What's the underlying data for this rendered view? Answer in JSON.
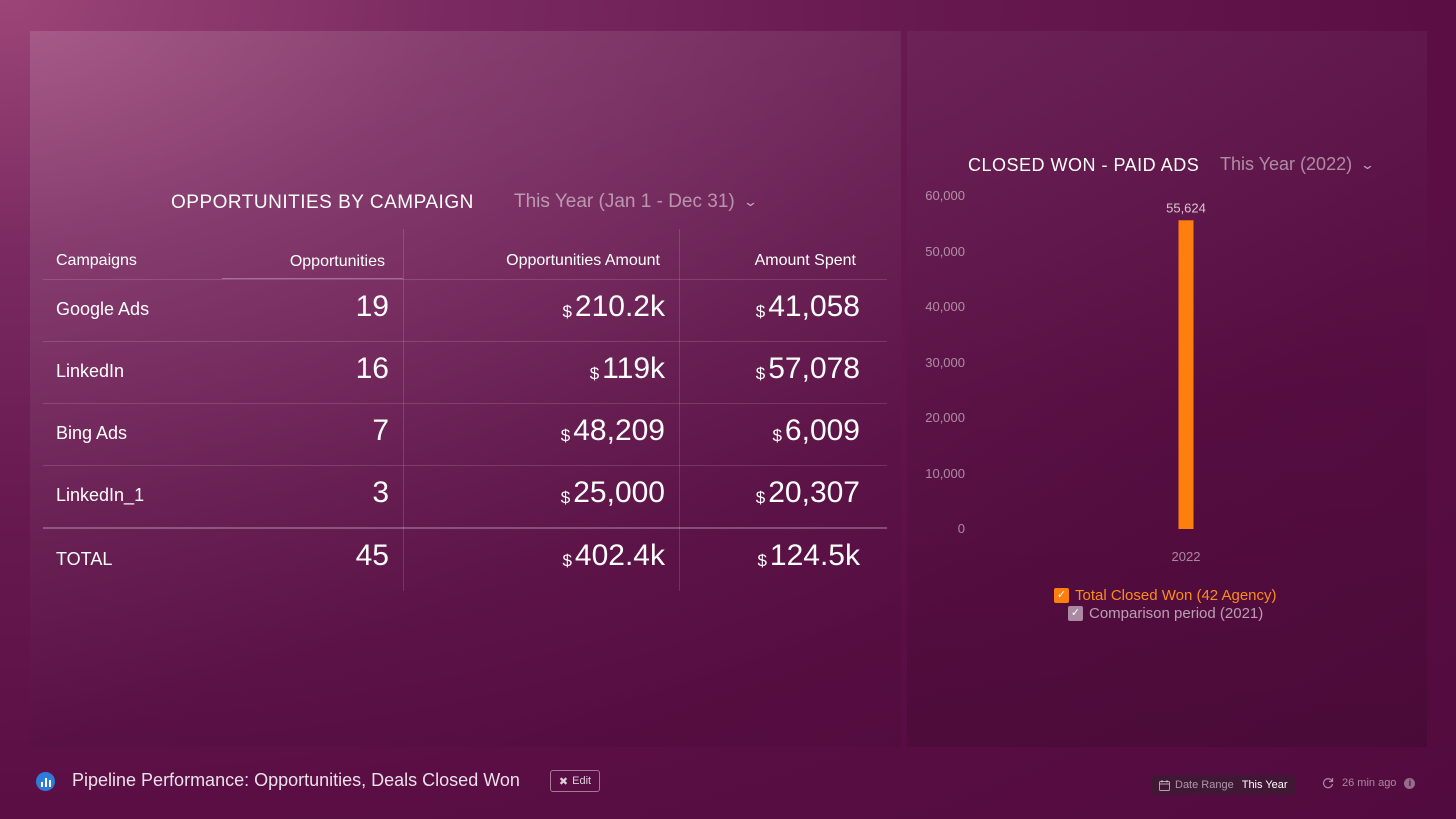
{
  "left_widget": {
    "title": "OPPORTUNITIES BY CAMPAIGN",
    "period": "This Year (Jan 1 - Dec 31)",
    "columns": [
      "Campaigns",
      "Opportunities",
      "Opportunities Amount",
      "Amount Spent"
    ],
    "currency_symbol": "$",
    "rows": [
      {
        "campaign": "Google Ads",
        "opportunities": "19",
        "amount": "210.2k",
        "spent": "41,058"
      },
      {
        "campaign": "LinkedIn",
        "opportunities": "16",
        "amount": "119k",
        "spent": "57,078"
      },
      {
        "campaign": "Bing Ads",
        "opportunities": "7",
        "amount": "48,209",
        "spent": "6,009"
      },
      {
        "campaign": "LinkedIn_1",
        "opportunities": "3",
        "amount": "25,000",
        "spent": "20,307"
      }
    ],
    "total": {
      "label": "TOTAL",
      "opportunities": "45",
      "amount": "402.4k",
      "spent": "124.5k"
    }
  },
  "right_widget": {
    "title": "CLOSED WON - PAID ADS",
    "period": "This Year (2022)",
    "legend": [
      {
        "label": "Total Closed Won (42 Agency)",
        "color": "#ff7f0e",
        "checked": true
      },
      {
        "label": "Comparison period (2021)",
        "color": "#a98aa0",
        "checked": true
      }
    ]
  },
  "chart_data": {
    "type": "bar",
    "categories": [
      "2022"
    ],
    "series": [
      {
        "name": "Total Closed Won (42 Agency)",
        "values": [
          55624
        ],
        "data_labels": [
          "55,624"
        ],
        "color": "#ff7f0e"
      }
    ],
    "yticks": [
      "60,000",
      "50,000",
      "40,000",
      "30,000",
      "20,000",
      "10,000",
      "0"
    ],
    "ylim": [
      0,
      60000
    ],
    "grid": false,
    "legend_position": "bottom"
  },
  "footer": {
    "title": "Pipeline Performance: Opportunities, Deals Closed Won",
    "edit_label": "Edit",
    "date_range_label": "Date Range",
    "date_range_value": "This Year",
    "updated": "26 min ago"
  }
}
